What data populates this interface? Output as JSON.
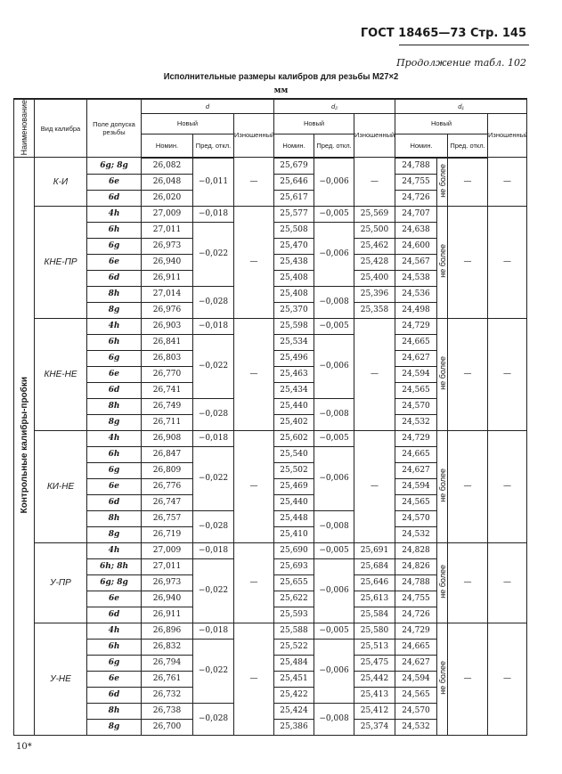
{
  "page_header": "ГОСТ 18465—73 Стр. 145",
  "continuation": "Продолжение табл. 102",
  "title": "Исполнительные размеры калибров для резьбы M27×2",
  "unit": "мм",
  "footer": "10*",
  "columns": {
    "name": "Наименование",
    "type": "Вид калибра",
    "field": "Поле допуска резьбы",
    "d": "d",
    "d2": "d₂",
    "d1": "d₁",
    "new": "Новый",
    "worn": "Изношенный",
    "nom": "Номин.",
    "dev": "Пред. откл."
  },
  "section": "Контрольные калибры-пробки",
  "groups": [
    {
      "name": "К-И",
      "rows": [
        {
          "field": "6g; 8g",
          "d": "26,082",
          "d2": "25,679",
          "d1": "24,788"
        },
        {
          "field": "6e",
          "d": "26,048",
          "d2": "25,646",
          "d1": "24,755"
        },
        {
          "field": "6d",
          "d": "26,020",
          "d2": "25,617",
          "d1": "24,726"
        }
      ],
      "d_dev": [
        [
          "−0,011",
          3
        ]
      ],
      "d_worn": [
        [
          "—",
          3
        ]
      ],
      "d2_dev": [
        [
          "−0,006",
          3
        ]
      ],
      "d2_worn": [
        [
          "—",
          3
        ]
      ],
      "d1_note": "не более",
      "d1_dev": "—",
      "d1_worn": "—"
    },
    {
      "name": "КНЕ-ПР",
      "rows": [
        {
          "field": "4h",
          "d": "27,009",
          "d2": "25,577",
          "d2w": "25,569",
          "d1": "24,707"
        },
        {
          "field": "6h",
          "d": "27,011",
          "d2": "25,508",
          "d2w": "25,500",
          "d1": "24,638"
        },
        {
          "field": "6g",
          "d": "26,973",
          "d2": "25,470",
          "d2w": "25,462",
          "d1": "24,600"
        },
        {
          "field": "6e",
          "d": "26,940",
          "d2": "25,438",
          "d2w": "25,428",
          "d1": "24,567"
        },
        {
          "field": "6d",
          "d": "26,911",
          "d2": "25,408",
          "d2w": "25,400",
          "d1": "24,538"
        },
        {
          "field": "8h",
          "d": "27,014",
          "d2": "25,408",
          "d2w": "25,396",
          "d1": "24,536"
        },
        {
          "field": "8g",
          "d": "26,976",
          "d2": "25,370",
          "d2w": "25,358",
          "d1": "24,498"
        }
      ],
      "d_dev": [
        [
          "−0,018",
          1
        ],
        [
          "−0,022",
          4
        ],
        [
          "−0,028",
          2
        ]
      ],
      "d_worn": [
        [
          "—",
          7
        ]
      ],
      "d2_dev": [
        [
          "−0,005",
          1
        ],
        [
          "−0,006",
          4
        ],
        [
          "−0,008",
          2
        ]
      ],
      "d2_worn": null,
      "d1_note": "не более",
      "d1_dev": "—",
      "d1_worn": "—"
    },
    {
      "name": "КНЕ-НЕ",
      "rows": [
        {
          "field": "4h",
          "d": "26,903",
          "d2": "25,598",
          "d1": "24,729"
        },
        {
          "field": "6h",
          "d": "26,841",
          "d2": "25,534",
          "d1": "24,665"
        },
        {
          "field": "6g",
          "d": "26,803",
          "d2": "25,496",
          "d1": "24,627"
        },
        {
          "field": "6e",
          "d": "26,770",
          "d2": "25,463",
          "d1": "24,594"
        },
        {
          "field": "6d",
          "d": "26,741",
          "d2": "25,434",
          "d1": "24,565"
        },
        {
          "field": "8h",
          "d": "26,749",
          "d2": "25,440",
          "d1": "24,570"
        },
        {
          "field": "8g",
          "d": "26,711",
          "d2": "25,402",
          "d1": "24,532"
        }
      ],
      "d_dev": [
        [
          "−0,018",
          1
        ],
        [
          "−0,022",
          4
        ],
        [
          "−0,028",
          2
        ]
      ],
      "d_worn": [
        [
          "—",
          7
        ]
      ],
      "d2_dev": [
        [
          "−0,005",
          1
        ],
        [
          "−0,006",
          4
        ],
        [
          "−0,008",
          2
        ]
      ],
      "d2_worn": [
        [
          "—",
          7
        ]
      ],
      "d1_note": "не более",
      "d1_dev": "—",
      "d1_worn": "—"
    },
    {
      "name": "КИ-НЕ",
      "rows": [
        {
          "field": "4h",
          "d": "26,908",
          "d2": "25,602",
          "d1": "24,729"
        },
        {
          "field": "6h",
          "d": "26,847",
          "d2": "25,540",
          "d1": "24,665"
        },
        {
          "field": "6g",
          "d": "26,809",
          "d2": "25,502",
          "d1": "24,627"
        },
        {
          "field": "6e",
          "d": "26,776",
          "d2": "25,469",
          "d1": "24,594"
        },
        {
          "field": "6d",
          "d": "26,747",
          "d2": "25,440",
          "d1": "24,565"
        },
        {
          "field": "8h",
          "d": "26,757",
          "d2": "25,448",
          "d1": "24,570"
        },
        {
          "field": "8g",
          "d": "26,719",
          "d2": "25,410",
          "d1": "24,532"
        }
      ],
      "d_dev": [
        [
          "−0,018",
          1
        ],
        [
          "−0,022",
          4
        ],
        [
          "−0,028",
          2
        ]
      ],
      "d_worn": [
        [
          "—",
          7
        ]
      ],
      "d2_dev": [
        [
          "−0,005",
          1
        ],
        [
          "−0,006",
          4
        ],
        [
          "−0,008",
          2
        ]
      ],
      "d2_worn": [
        [
          "—",
          7
        ]
      ],
      "d1_note": "не более",
      "d1_dev": "—",
      "d1_worn": "—"
    },
    {
      "name": "У-ПР",
      "rows": [
        {
          "field": "4h",
          "d": "27,009",
          "d2": "25,690",
          "d2w": "25,691",
          "d1": "24,828"
        },
        {
          "field": "6h; 8h",
          "d": "27,011",
          "d2": "25,693",
          "d2w": "25,684",
          "d1": "24,826"
        },
        {
          "field": "6g; 8g",
          "d": "26,973",
          "d2": "25,655",
          "d2w": "25,646",
          "d1": "24,788"
        },
        {
          "field": "6e",
          "d": "26,940",
          "d2": "25,622",
          "d2w": "25,613",
          "d1": "24,755"
        },
        {
          "field": "6d",
          "d": "26,911",
          "d2": "25,593",
          "d2w": "25,584",
          "d1": "24,726"
        }
      ],
      "d_dev": [
        [
          "−0,018",
          1
        ],
        [
          "−0,022",
          4
        ]
      ],
      "d_worn": [
        [
          "—",
          5
        ]
      ],
      "d2_dev": [
        [
          "−0,005",
          1
        ],
        [
          "−0,006",
          4
        ]
      ],
      "d2_worn": null,
      "d1_note": "не более",
      "d1_dev": "—",
      "d1_worn": "—"
    },
    {
      "name": "У-НЕ",
      "rows": [
        {
          "field": "4h",
          "d": "26,896",
          "d2": "25,588",
          "d2w": "25,580",
          "d1": "24,729"
        },
        {
          "field": "6h",
          "d": "26,832",
          "d2": "25,522",
          "d2w": "25,513",
          "d1": "24,665"
        },
        {
          "field": "6g",
          "d": "26,794",
          "d2": "25,484",
          "d2w": "25,475",
          "d1": "24,627"
        },
        {
          "field": "6e",
          "d": "26,761",
          "d2": "25,451",
          "d2w": "25,442",
          "d1": "24,594"
        },
        {
          "field": "6d",
          "d": "26,732",
          "d2": "25,422",
          "d2w": "25,413",
          "d1": "24,565"
        },
        {
          "field": "8h",
          "d": "26,738",
          "d2": "25,424",
          "d2w": "25,412",
          "d1": "24,570"
        },
        {
          "field": "8g",
          "d": "26,700",
          "d2": "25,386",
          "d2w": "25,374",
          "d1": "24,532"
        }
      ],
      "d_dev": [
        [
          "−0,018",
          1
        ],
        [
          "−0,022",
          4
        ],
        [
          "−0,028",
          2
        ]
      ],
      "d_worn": [
        [
          "—",
          7
        ]
      ],
      "d2_dev": [
        [
          "−0,005",
          1
        ],
        [
          "−0,006",
          4
        ],
        [
          "−0,008",
          2
        ]
      ],
      "d2_worn": null,
      "d1_note": "не более",
      "d1_dev": "—",
      "d1_worn": "—"
    }
  ]
}
